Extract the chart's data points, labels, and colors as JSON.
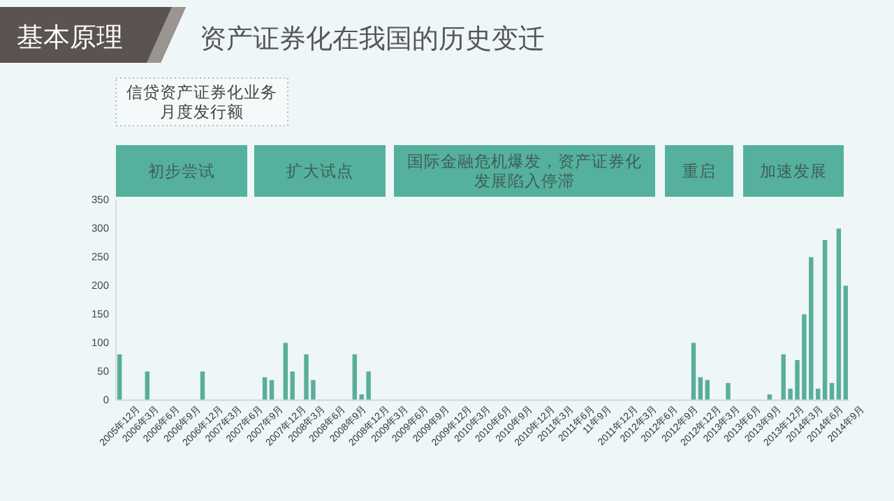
{
  "chart_data": {
    "type": "bar",
    "title": "资产证券化在我国的历史变迁",
    "ylabel": "信贷资产证券化业务月度发行额",
    "annotations": [
      "基本原理",
      "初步尝试",
      "扩大试点",
      "国际金融危机爆发，资产证券化发展陷入停滞",
      "重启",
      "加速发展"
    ],
    "categories": [
      "2005年12月",
      null,
      null,
      "2006年3月",
      null,
      null,
      "2006年6月",
      null,
      null,
      "2006年9月",
      null,
      null,
      "2006年12月",
      null,
      null,
      "2007年3月",
      null,
      null,
      "2007年6月",
      null,
      null,
      "2007年9月",
      null,
      null,
      "2007年12月",
      null,
      null,
      "2008年3月",
      null,
      null,
      "2008年6月",
      null,
      null,
      "2008年9月",
      null,
      null,
      "2008年12月",
      null,
      null,
      "2009年3月",
      null,
      null,
      "2009年6月",
      null,
      null,
      "2009年9月",
      null,
      null,
      "2009年12月",
      null,
      null,
      "2010年3月",
      null,
      null,
      "2010年6月",
      null,
      null,
      "2010年9月",
      null,
      null,
      "2010年12月",
      null,
      null,
      "2011年3月",
      null,
      null,
      "2011年6月",
      null,
      null,
      "11年9月",
      null,
      null,
      "2011年12月",
      null,
      null,
      "2012年3月",
      null,
      null,
      "2012年6月",
      null,
      null,
      "2012年9月",
      null,
      null,
      "2012年12月",
      null,
      null,
      "2013年3月",
      null,
      null,
      "2013年6月",
      null,
      null,
      "2013年9月",
      null,
      null,
      "2013年12月",
      null,
      null,
      "2014年3月",
      null,
      null,
      "2014年6月",
      null,
      null,
      "2014年9月"
    ],
    "values": [
      80,
      0,
      0,
      0,
      50,
      0,
      0,
      0,
      0,
      0,
      0,
      0,
      50,
      0,
      0,
      0,
      0,
      0,
      0,
      0,
      0,
      40,
      35,
      0,
      100,
      50,
      0,
      80,
      35,
      0,
      0,
      0,
      0,
      0,
      80,
      10,
      50,
      0,
      0,
      0,
      0,
      0,
      0,
      0,
      0,
      0,
      0,
      0,
      0,
      0,
      0,
      0,
      0,
      0,
      0,
      0,
      0,
      0,
      0,
      0,
      0,
      0,
      0,
      0,
      0,
      0,
      0,
      0,
      0,
      0,
      0,
      0,
      0,
      0,
      0,
      0,
      0,
      0,
      0,
      0,
      0,
      0,
      0,
      100,
      40,
      35,
      0,
      0,
      30,
      0,
      0,
      0,
      0,
      0,
      10,
      0,
      80,
      20,
      70,
      150,
      250,
      20,
      280,
      30,
      300,
      200
    ],
    "color": "#58ae9b",
    "ylim": [
      0,
      350
    ],
    "yticks": [
      0,
      50,
      100,
      150,
      200,
      250,
      300,
      350
    ],
    "grid": false,
    "legend": false
  }
}
